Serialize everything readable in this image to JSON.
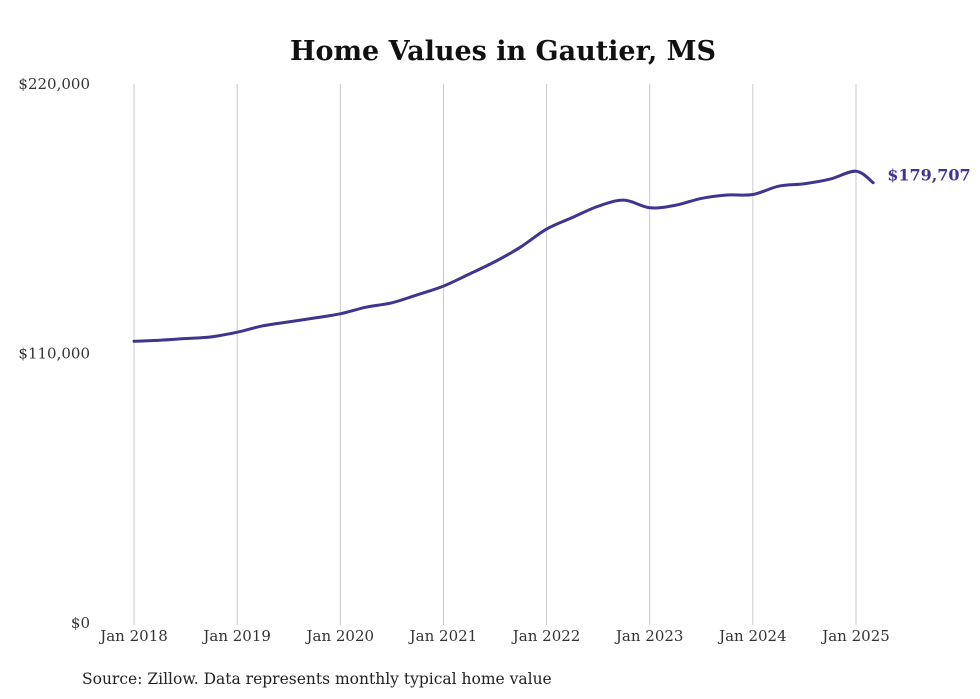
{
  "chart_data": {
    "type": "line",
    "title": "Home Values in Gautier, MS",
    "xlabel": "",
    "ylabel": "",
    "x_ticks": [
      "Jan 2018",
      "Jan 2019",
      "Jan 2020",
      "Jan 2021",
      "Jan 2022",
      "Jan 2023",
      "Jan 2024",
      "Jan 2025"
    ],
    "y_ticks": [
      "$0",
      "$110,000",
      "$220,000"
    ],
    "ylim": [
      0,
      220000
    ],
    "xlim": [
      "2018-01",
      "2025-03"
    ],
    "grid": "vertical",
    "legend": "none",
    "series": [
      {
        "color": "#3d3590",
        "end_label": "$179,707",
        "points": [
          {
            "x": "2018-01",
            "y": 115000
          },
          {
            "x": "2018-04",
            "y": 115400
          },
          {
            "x": "2018-07",
            "y": 116100
          },
          {
            "x": "2018-10",
            "y": 116800
          },
          {
            "x": "2019-01",
            "y": 118700
          },
          {
            "x": "2019-04",
            "y": 121300
          },
          {
            "x": "2019-07",
            "y": 122900
          },
          {
            "x": "2019-10",
            "y": 124500
          },
          {
            "x": "2020-01",
            "y": 126200
          },
          {
            "x": "2020-04",
            "y": 128900
          },
          {
            "x": "2020-07",
            "y": 130700
          },
          {
            "x": "2020-10",
            "y": 134000
          },
          {
            "x": "2021-01",
            "y": 137500
          },
          {
            "x": "2021-04",
            "y": 142400
          },
          {
            "x": "2021-07",
            "y": 147500
          },
          {
            "x": "2021-10",
            "y": 153500
          },
          {
            "x": "2022-01",
            "y": 160800
          },
          {
            "x": "2022-04",
            "y": 165500
          },
          {
            "x": "2022-07",
            "y": 170100
          },
          {
            "x": "2022-10",
            "y": 172600
          },
          {
            "x": "2023-01",
            "y": 169500
          },
          {
            "x": "2023-04",
            "y": 170500
          },
          {
            "x": "2023-07",
            "y": 173300
          },
          {
            "x": "2023-10",
            "y": 174700
          },
          {
            "x": "2024-01",
            "y": 174900
          },
          {
            "x": "2024-04",
            "y": 178300
          },
          {
            "x": "2024-07",
            "y": 179300
          },
          {
            "x": "2024-10",
            "y": 181200
          },
          {
            "x": "2025-01",
            "y": 184400
          },
          {
            "x": "2025-03",
            "y": 179707
          }
        ]
      }
    ],
    "source": "Source: Zillow. Data represents monthly typical home value"
  }
}
